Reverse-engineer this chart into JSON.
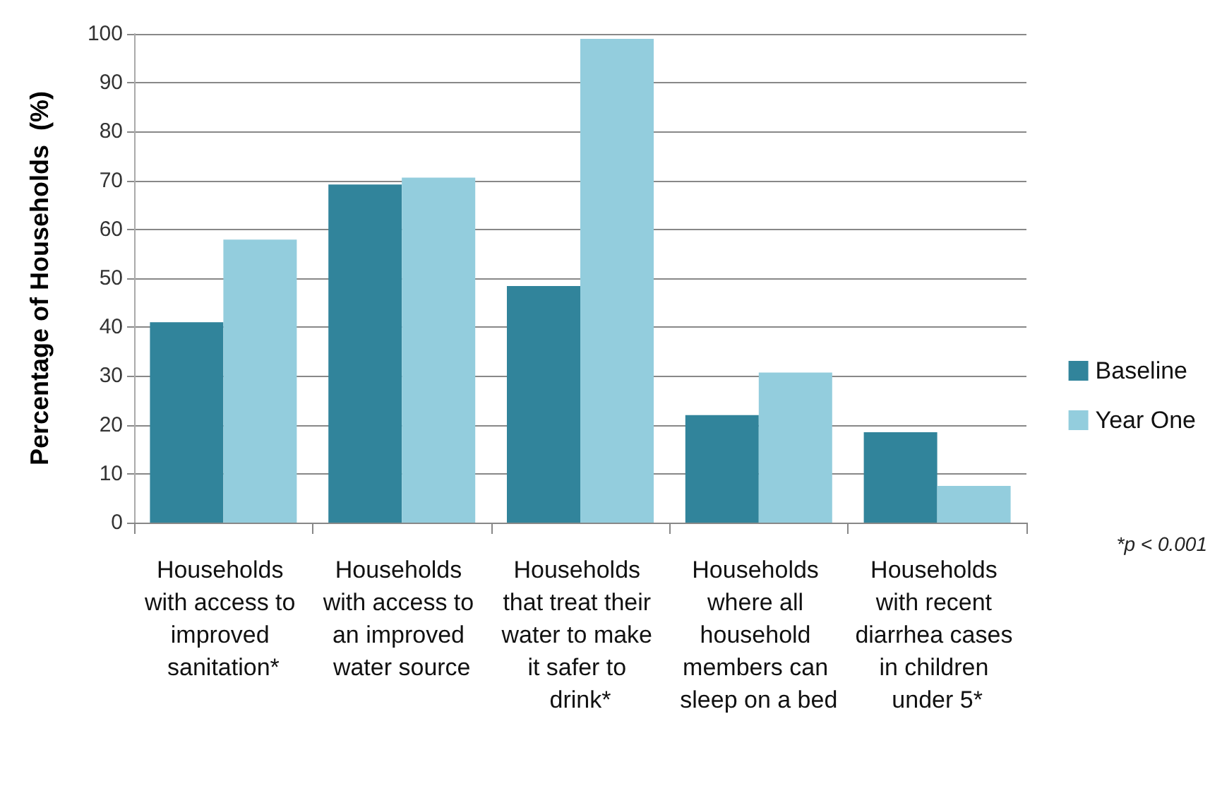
{
  "chart_data": {
    "type": "bar",
    "ylabel": "Percentage of Households  (%)",
    "categories": [
      "Households with access to improved sanitation*",
      "Households with access to an improved water source",
      "Households that treat their water to make it safer to drink*",
      "Households where all household members can sleep on a bed",
      "Households with recent diarrhea cases in children under 5*"
    ],
    "series": [
      {
        "name": "Baseline",
        "color": "#31849b",
        "values": [
          41,
          69.2,
          48.4,
          22,
          18.5
        ]
      },
      {
        "name": "Year One",
        "color": "#93cddd",
        "values": [
          57.9,
          70.6,
          99,
          30.7,
          7.5
        ]
      }
    ],
    "ylim": [
      0,
      100
    ],
    "yticks": [
      0,
      10,
      20,
      30,
      40,
      50,
      60,
      70,
      80,
      90,
      100
    ],
    "grid": "y",
    "legend": "right",
    "annotations": [
      "*p < 0.001"
    ]
  }
}
